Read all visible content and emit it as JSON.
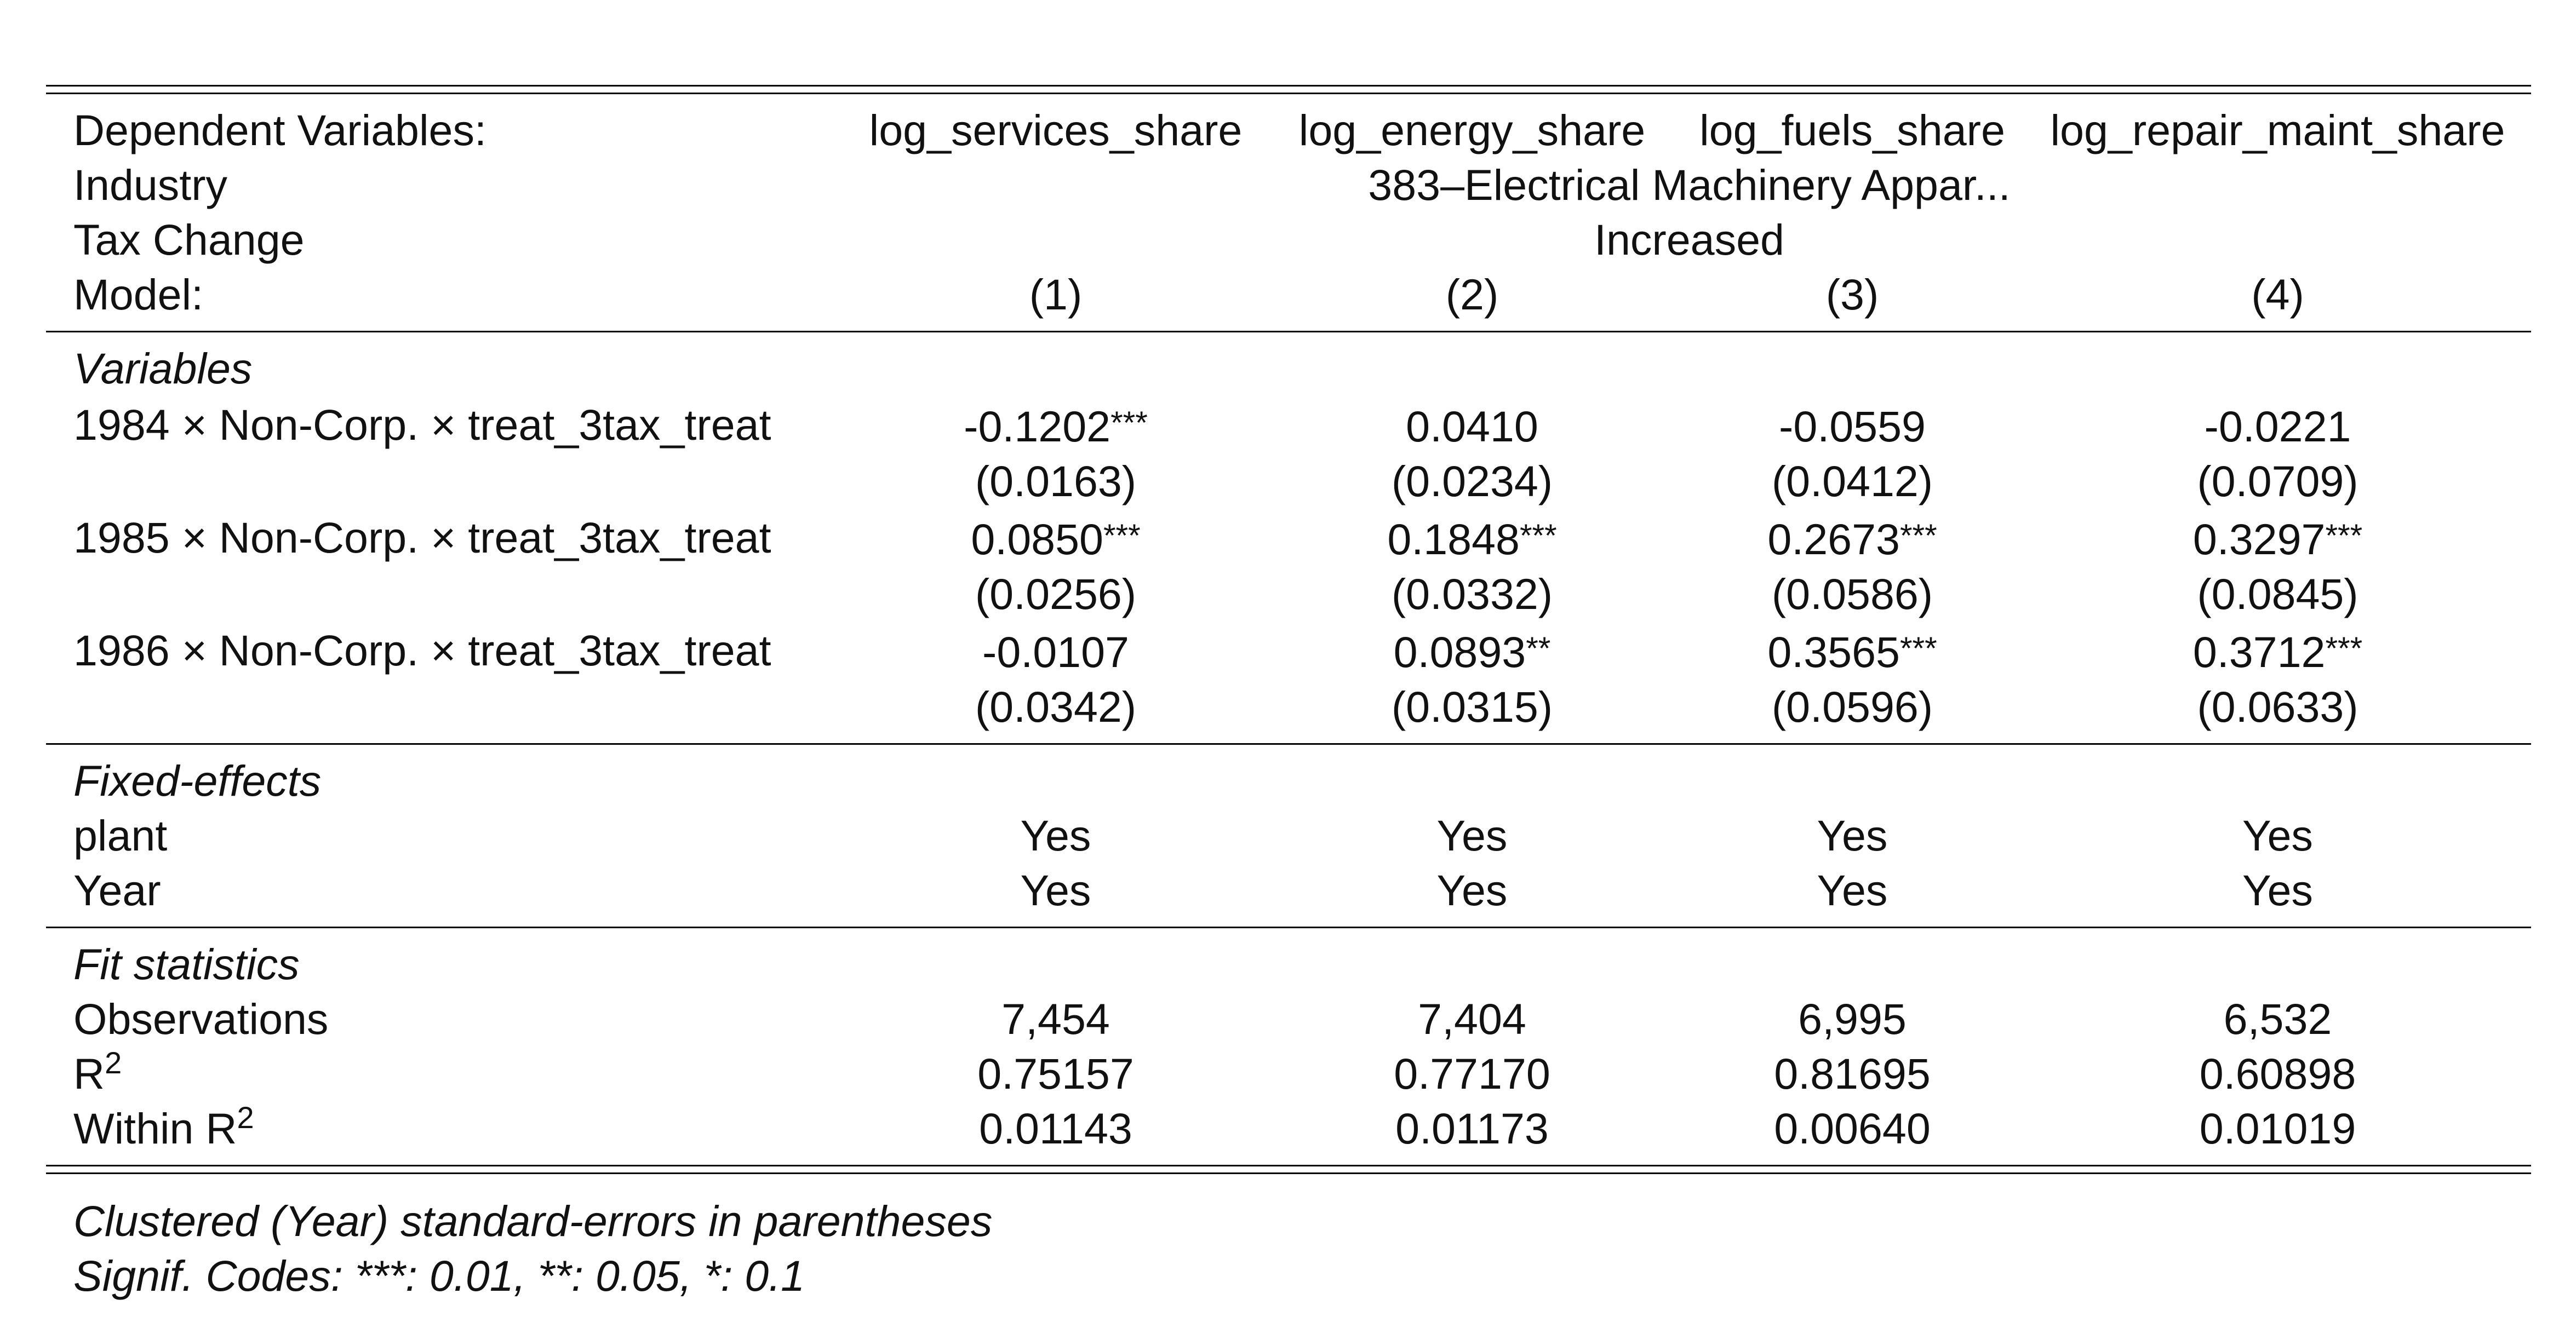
{
  "header": {
    "dependent_label": "Dependent Variables:",
    "dependent_vars": [
      "log_services_share",
      "log_energy_share",
      "log_fuels_share",
      "log_repair_maint_share"
    ],
    "industry_label": "Industry",
    "industry_value": "383–Electrical Machinery Appar...",
    "tax_label": "Tax Change",
    "tax_value": "Increased",
    "model_label": "Model:",
    "models": [
      "(1)",
      "(2)",
      "(3)",
      "(4)"
    ]
  },
  "variables": {
    "section_title": "Variables",
    "rows": [
      {
        "label": "1984 × Non-Corp. × treat_3tax_treat",
        "coef": [
          "-0.1202",
          "0.0410",
          "-0.0559",
          "-0.0221"
        ],
        "stars": [
          "***",
          "",
          "",
          ""
        ],
        "se": [
          "(0.0163)",
          "(0.0234)",
          "(0.0412)",
          "(0.0709)"
        ]
      },
      {
        "label": "1985 × Non-Corp. × treat_3tax_treat",
        "coef": [
          "0.0850",
          "0.1848",
          "0.2673",
          "0.3297"
        ],
        "stars": [
          "***",
          "***",
          "***",
          "***"
        ],
        "se": [
          "(0.0256)",
          "(0.0332)",
          "(0.0586)",
          "(0.0845)"
        ]
      },
      {
        "label": "1986 × Non-Corp. × treat_3tax_treat",
        "coef": [
          "-0.0107",
          "0.0893",
          "0.3565",
          "0.3712"
        ],
        "stars": [
          "",
          "**",
          "***",
          "***"
        ],
        "se": [
          "(0.0342)",
          "(0.0315)",
          "(0.0596)",
          "(0.0633)"
        ]
      }
    ]
  },
  "fixed_effects": {
    "section_title": "Fixed-effects",
    "rows": [
      {
        "label": "plant",
        "values": [
          "Yes",
          "Yes",
          "Yes",
          "Yes"
        ]
      },
      {
        "label": "Year",
        "values": [
          "Yes",
          "Yes",
          "Yes",
          "Yes"
        ]
      }
    ]
  },
  "fit": {
    "section_title": "Fit statistics",
    "observations_label": "Observations",
    "observations": [
      "7,454",
      "7,404",
      "6,995",
      "6,532"
    ],
    "r2_label": "R",
    "r2_sup": "2",
    "r2": [
      "0.75157",
      "0.77170",
      "0.81695",
      "0.60898"
    ],
    "within_r2_label": "Within R",
    "within_r2_sup": "2",
    "within_r2": [
      "0.01143",
      "0.01173",
      "0.00640",
      "0.01019"
    ]
  },
  "notes": {
    "line1": "Clustered (Year) standard-errors in parentheses",
    "line2": "Signif. Codes: ***: 0.01, **: 0.05, *: 0.1"
  }
}
